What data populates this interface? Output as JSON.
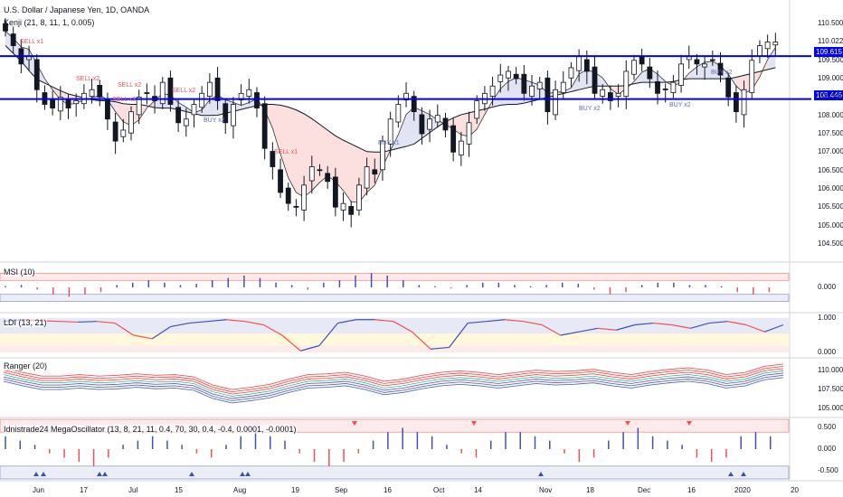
{
  "header": {
    "symbol_title": "U.S. Dollar / Japanese Yen, 1D, OANDA",
    "indicator_label": "Kenji (21, 8, 11, 1, 0.005)"
  },
  "panes": {
    "msi_title": "MSI (10)",
    "ldi_title": "LDI (13, 21)",
    "ranger_title": "Ranger (20)",
    "mega_title": "Idnistrade24 MegaOscillator (13, 8, 21, 11, 0.4, 70, 30, 0.4, -0.4, 0.0001, -0.0001)"
  },
  "price_axis": {
    "ticks": [
      "110.500",
      "110.022",
      "109.500",
      "109.000",
      "108.500",
      "108.000",
      "107.500",
      "107.000",
      "106.500",
      "106.000",
      "105.500",
      "105.000",
      "104.500"
    ],
    "tag_upper": "109.615",
    "tag_lower": "108.446"
  },
  "msi_axis": {
    "ticks": [
      "0.000"
    ]
  },
  "ldi_axis": {
    "ticks": [
      "1.000",
      "0.000"
    ]
  },
  "ranger_axis": {
    "ticks": [
      "110.000",
      "107.500",
      "105.000"
    ]
  },
  "mega_axis": {
    "ticks": [
      "0.500",
      "0.000",
      "-0.500"
    ]
  },
  "x_axis": {
    "labels": [
      "Jun",
      "17",
      "Jul",
      "15",
      "Aug",
      "19",
      "Sep",
      "16",
      "Oct",
      "14",
      "Nov",
      "18",
      "Dec",
      "16",
      "2020",
      "20"
    ]
  },
  "signals": {
    "sell_x1": "SELL x1",
    "sell_x2": "SELL x2",
    "buy_x1": "BUY x1",
    "buy_x2": "BUY x2"
  },
  "colors": {
    "up_candle": "#ffffff",
    "down_candle": "#131722",
    "level_line": "#0000ff",
    "sell_label": "#ef5350",
    "buy_label": "#5c6bc0",
    "band_upper": "#ef5350",
    "band_lower": "#5c6bc0"
  },
  "chart_data": [
    {
      "type": "candlestick",
      "title": "U.S. Dollar / Japanese Yen, 1D, OANDA",
      "ylim": [
        104.2,
        110.8
      ],
      "horizontal_levels": [
        109.615,
        108.446
      ],
      "x_labels": [
        "Jun",
        "17",
        "Jul",
        "15",
        "Aug",
        "19",
        "Sep",
        "16",
        "Oct",
        "14",
        "Nov",
        "18",
        "Dec",
        "16",
        "2020",
        "20"
      ],
      "close_path": [
        110.3,
        109.9,
        109.4,
        109.6,
        108.7,
        108.3,
        108.2,
        108.5,
        108.2,
        108.4,
        108.6,
        108.7,
        108.5,
        107.9,
        107.3,
        107.6,
        108.1,
        108.5,
        108.6,
        108.4,
        108.9,
        108.3,
        107.8,
        107.9,
        108.3,
        108.6,
        108.9,
        108.4,
        107.8,
        108.3,
        108.6,
        108.7,
        108.2,
        107.1,
        106.6,
        105.9,
        105.6,
        105.5,
        106.1,
        106.6,
        106.5,
        106.2,
        105.5,
        105.6,
        105.3,
        106.1,
        106.6,
        106.4,
        107.3,
        107.9,
        108.3,
        108.6,
        108.1,
        107.5,
        107.9,
        108.0,
        107.6,
        107.0,
        107.3,
        107.8,
        108.4,
        108.6,
        108.8,
        109.1,
        109.2,
        109.0,
        108.6,
        108.8,
        108.9,
        108.1,
        108.7,
        108.9,
        109.3,
        109.6,
        109.2,
        108.6,
        108.7,
        108.4,
        108.6,
        109.2,
        109.5,
        109.4,
        109.0,
        108.6,
        108.7,
        108.9,
        109.4,
        109.6,
        109.4,
        109.4,
        109.5,
        109.1,
        108.5,
        108.1,
        108.7,
        109.5,
        109.9,
        110.0,
        110.0
      ],
      "series": [
        {
          "name": "Kenji",
          "values": [
            109.9,
            109.5,
            109.0,
            108.8,
            108.6,
            108.5,
            108.4,
            108.4,
            108.3,
            108.3,
            108.2,
            108.2,
            108.1,
            108.0,
            108.0,
            108.1,
            108.2,
            108.3,
            108.3,
            108.2,
            108.0,
            107.7,
            107.4,
            107.2,
            107.0,
            107.0,
            107.1,
            107.2,
            107.5,
            107.8,
            108.0,
            108.1,
            108.2,
            108.3,
            108.3,
            108.4,
            108.5,
            108.6,
            108.7,
            108.8,
            108.8,
            108.8,
            108.9,
            108.9,
            108.9,
            109.0,
            109.0,
            109.0,
            109.0,
            109.1,
            109.2,
            109.3
          ]
        }
      ]
    },
    {
      "type": "bar",
      "title": "MSI (10)",
      "ylim": [
        -1,
        1
      ],
      "values": [
        0.05,
        0.1,
        -0.1,
        -0.3,
        -0.4,
        -0.3,
        -0.2,
        0.1,
        0.2,
        0.3,
        0.2,
        0.1,
        0.15,
        0.3,
        0.4,
        0.5,
        0.4,
        0.2,
        0.1,
        -0.1,
        0.2,
        0.3,
        0.5,
        0.6,
        0.5,
        0.3,
        0.1,
        0.05,
        -0.05,
        0.1,
        0.2,
        0.2,
        0.1,
        0.05,
        0.1,
        0.2,
        0.15,
        -0.1,
        -0.3,
        -0.2,
        0.1,
        0.2,
        0.2,
        0.1,
        0.1,
        0.05,
        -0.2,
        -0.3,
        -0.2
      ]
    },
    {
      "type": "line",
      "title": "LDI (13, 21)",
      "ylim": [
        -0.1,
        1.1
      ],
      "values": [
        0.9,
        0.95,
        0.92,
        0.9,
        0.88,
        0.9,
        0.85,
        0.5,
        0.4,
        0.75,
        0.85,
        0.9,
        0.95,
        0.9,
        0.8,
        0.5,
        0.05,
        0.2,
        0.85,
        0.95,
        0.95,
        0.9,
        0.6,
        0.1,
        0.15,
        0.85,
        0.9,
        0.95,
        0.9,
        0.8,
        0.5,
        0.6,
        0.7,
        0.65,
        0.8,
        0.85,
        0.8,
        0.7,
        0.85,
        0.9,
        0.8,
        0.6,
        0.8
      ]
    },
    {
      "type": "line",
      "title": "Ranger (20)",
      "ylim": [
        104,
        111.5
      ],
      "values": [
        109.5,
        108.9,
        108.4,
        108.4,
        108.6,
        108.4,
        108.5,
        108.7,
        108.5,
        108.6,
        108.3,
        107.2,
        106.6,
        106.9,
        107.3,
        108.0,
        108.6,
        108.7,
        108.9,
        108.4,
        107.7,
        108.0,
        108.5,
        108.9,
        109.1,
        108.9,
        108.6,
        108.9,
        109.2,
        109.0,
        109.1,
        109.3,
        108.9,
        108.6,
        109.0,
        109.3,
        109.5,
        109.2,
        108.6,
        108.9,
        109.7,
        110.0
      ]
    },
    {
      "type": "bar",
      "title": "Idnistrade24 MegaOscillator (13, 8, 21, 11, 0.4, 70, 30, 0.4, -0.4, 0.0001, -0.0001)",
      "ylim": [
        -0.7,
        0.7
      ],
      "values": [
        0.3,
        0.2,
        0.1,
        -0.1,
        -0.2,
        -0.3,
        -0.4,
        -0.2,
        0.1,
        0.2,
        0.3,
        0.2,
        0.1,
        -0.1,
        -0.2,
        0.1,
        0.3,
        0.4,
        0.3,
        0.2,
        -0.1,
        -0.3,
        -0.4,
        -0.3,
        -0.1,
        0.2,
        0.4,
        0.5,
        0.4,
        0.3,
        0.1,
        -0.1,
        -0.2,
        0.2,
        0.4,
        0.4,
        0.3,
        0.2,
        -0.1,
        -0.3,
        -0.2,
        0.2,
        0.4,
        0.5,
        0.3,
        0.2,
        0.1,
        -0.2,
        -0.3,
        -0.2,
        0.3,
        0.4,
        0.3
      ]
    }
  ]
}
